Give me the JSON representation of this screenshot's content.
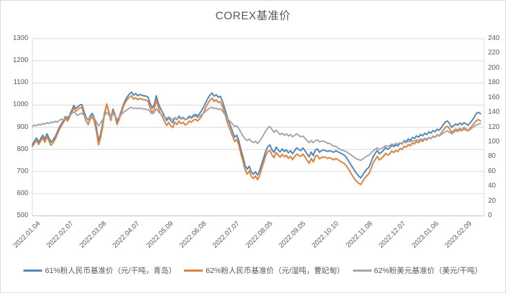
{
  "title": "COREX基准价",
  "colors": {
    "series_blue": "#4B86C5",
    "series_orange": "#ED7D31",
    "series_gray": "#A5A5A5",
    "text": "#595959",
    "gridline": "#d9d9d9",
    "axis_line": "#bfbfbf"
  },
  "chart_data": {
    "type": "line",
    "title": "COREX基准价",
    "grid": true,
    "legend_position": "bottom",
    "left_axis": {
      "min": 500,
      "max": 1300,
      "step": 100,
      "tick_labels": [
        "1300",
        "1200",
        "1100",
        "1000",
        "900",
        "800",
        "700",
        "600",
        "500"
      ]
    },
    "right_axis": {
      "min": 0,
      "max": 240,
      "step": 20,
      "tick_labels": [
        "240",
        "220",
        "200",
        "180",
        "160",
        "140",
        "120",
        "100",
        "80",
        "60",
        "40",
        "20",
        "0"
      ]
    },
    "x_tick_labels": [
      "2022.01.04",
      "2022.02.07",
      "2022.03.08",
      "2022.04.07",
      "2022.05.09",
      "2022.06.08",
      "2022.07.07",
      "2022.08.05",
      "2022.09.05",
      "2022.10.10",
      "2022.11.08",
      "2022.12.07",
      "2023.01.06",
      "2023.02.09"
    ],
    "series": [
      {
        "name": "61%粉人民币基准价（元/干吨，青岛）",
        "axis": "left",
        "color": "#4B86C5",
        "values": [
          822,
          838,
          851,
          832,
          848,
          864,
          845,
          870,
          851,
          832,
          843,
          856,
          876,
          898,
          914,
          930,
          948,
          938,
          955,
          975,
          998,
          985,
          992,
          1000,
          1002,
          970,
          945,
          932,
          952,
          962,
          940,
          898,
          838,
          868,
          912,
          968,
          1000,
          972,
          940,
          982,
          958,
          922,
          945,
          972,
          1000,
          1022,
          1038,
          1050,
          1058,
          1045,
          1052,
          1042,
          1048,
          1044,
          1042,
          1040,
          1036,
          1008,
          986,
          1002,
          1042,
          1008,
          985,
          968,
          948,
          930,
          944,
          929,
          920,
          944,
          934,
          950,
          938,
          944,
          934,
          940,
          950,
          944,
          954,
          958,
          950,
          962,
          976,
          992,
          1012,
          1030,
          1045,
          1054,
          1040,
          1047,
          1035,
          1040,
          1018,
          988,
          958,
          928,
          904,
          878,
          855,
          864,
          838,
          798,
          766,
          728,
          710,
          724,
          698,
          687,
          699,
          684,
          702,
          733,
          762,
          792,
          812,
          820,
          798,
          786,
          810,
          797,
          788,
          802,
          790,
          798,
          784,
          794,
          780,
          794,
          807,
          799,
          794,
          807,
          794,
          779,
          766,
          788,
          772,
          797,
          802,
          787,
          794,
          797,
          794,
          790,
          794,
          790,
          787,
          794,
          789,
          784,
          779,
          774,
          764,
          749,
          734,
          719,
          704,
          691,
          679,
          671,
          685,
          700,
          711,
          719,
          742,
          766,
          781,
          796,
          780,
          787,
          795,
          808,
          800,
          806,
          818,
          812,
          820,
          815,
          829,
          824,
          839,
          834,
          847,
          841,
          854,
          849,
          861,
          855,
          867,
          861,
          873,
          867,
          879,
          873,
          885,
          879,
          891,
          886,
          898,
          912,
          924,
          928,
          916,
          899,
          907,
          915,
          909,
          919,
          911,
          921,
          915,
          909,
          920,
          931,
          946,
          963,
          967,
          961
        ]
      },
      {
        "name": "62%粉人民币基准价（元/湿吨，曹妃甸）",
        "axis": "left",
        "color": "#ED7D31",
        "values": [
          813,
          828,
          840,
          822,
          838,
          852,
          832,
          858,
          838,
          818,
          830,
          845,
          866,
          888,
          905,
          921,
          938,
          928,
          945,
          965,
          988,
          972,
          980,
          988,
          990,
          955,
          928,
          912,
          936,
          948,
          925,
          880,
          820,
          852,
          900,
          960,
          1005,
          968,
          930,
          975,
          950,
          912,
          936,
          962,
          992,
          1012,
          1026,
          1036,
          1042,
          1026,
          1034,
          1024,
          1030,
          1026,
          1024,
          1022,
          1018,
          988,
          966,
          982,
          1024,
          988,
          962,
          946,
          926,
          908,
          922,
          906,
          898,
          922,
          912,
          928,
          916,
          922,
          910,
          916,
          928,
          922,
          932,
          936,
          928,
          938,
          952,
          968,
          990,
          1008,
          1022,
          1031,
          1016,
          1024,
          1011,
          1016,
          995,
          965,
          935,
          905,
          882,
          858,
          835,
          845,
          818,
          778,
          746,
          708,
          688,
          703,
          678,
          668,
          680,
          663,
          682,
          713,
          742,
          772,
          790,
          795,
          775,
          762,
          786,
          774,
          765,
          778,
          766,
          773,
          759,
          769,
          753,
          767,
          779,
          772,
          768,
          779,
          766,
          751,
          737,
          759,
          743,
          769,
          773,
          757,
          763,
          766,
          763,
          759,
          763,
          757,
          753,
          759,
          753,
          747,
          741,
          736,
          726,
          711,
          696,
          681,
          666,
          655,
          647,
          641,
          656,
          671,
          682,
          690,
          713,
          738,
          753,
          768,
          752,
          759,
          768,
          782,
          774,
          780,
          792,
          786,
          795,
          790,
          804,
          799,
          814,
          809,
          822,
          816,
          829,
          824,
          836,
          830,
          842,
          836,
          848,
          842,
          854,
          848,
          860,
          854,
          866,
          860,
          874,
          888,
          899,
          904,
          893,
          876,
          884,
          892,
          886,
          895,
          888,
          898,
          892,
          886,
          896,
          907,
          918,
          930,
          934,
          929
        ]
      },
      {
        "name": "62%粉美元基准价（美元/干吨）",
        "axis": "right",
        "color": "#A5A5A5",
        "values": [
          121,
          123,
          122,
          124,
          123,
          125,
          124,
          126,
          125,
          127,
          126,
          128,
          127,
          129,
          131,
          130,
          132,
          134,
          136,
          138,
          141,
          138,
          136,
          138,
          139,
          136,
          133,
          131,
          134,
          135,
          132,
          127,
          122,
          125,
          130,
          136,
          140,
          137,
          133,
          138,
          135,
          131,
          134,
          137,
          140,
          142,
          144,
          146,
          147,
          145,
          146,
          145,
          146,
          145,
          145,
          144,
          144,
          141,
          138,
          140,
          145,
          141,
          138,
          136,
          134,
          132,
          134,
          132,
          130,
          133,
          131,
          133,
          131,
          132,
          130,
          131,
          133,
          132,
          134,
          135,
          133,
          135,
          137,
          139,
          142,
          144,
          146,
          147,
          145,
          146,
          144,
          145,
          142,
          138,
          134,
          130,
          127,
          124,
          121,
          122,
          118,
          113,
          108,
          104,
          102,
          104,
          101,
          99,
          101,
          98,
          101,
          105,
          110,
          115,
          119,
          121,
          117,
          113,
          116,
          113,
          110,
          112,
          109,
          111,
          108,
          110,
          107,
          109,
          111,
          109,
          107,
          108,
          105,
          102,
          99,
          102,
          99,
          102,
          103,
          100,
          101,
          101,
          100,
          98,
          98,
          96,
          94,
          94,
          92,
          90,
          89,
          88,
          87,
          85,
          83,
          81,
          79,
          77,
          76,
          75,
          77,
          79,
          81,
          82,
          85,
          88,
          90,
          92,
          90,
          91,
          93,
          95,
          94,
          95,
          97,
          96,
          98,
          97,
          99,
          98,
          100,
          99,
          101,
          100,
          102,
          101,
          103,
          102,
          104,
          103,
          105,
          104,
          106,
          105,
          107,
          107,
          109,
          108,
          110,
          112,
          114,
          115,
          113,
          111,
          113,
          115,
          114,
          116,
          115,
          117,
          116,
          115,
          117,
          119,
          121,
          123,
          124,
          125
        ]
      }
    ]
  }
}
